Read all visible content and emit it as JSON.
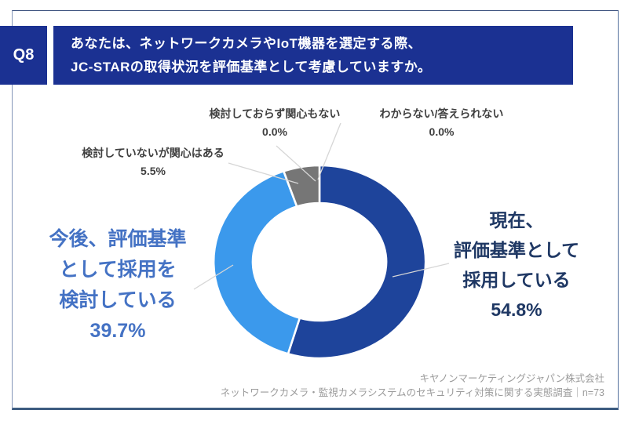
{
  "question": {
    "number": "Q8",
    "line1": "あなたは、ネットワークカメラやIoT機器を選定する際、",
    "line2": "JC-STARの取得状況を評価基準として考慮していますか。"
  },
  "chart_data": {
    "type": "pie",
    "subtype": "donut",
    "title": "",
    "unit": "%",
    "sample_size_label": "n=73",
    "categories": [
      "現在、評価基準として採用している",
      "今後、評価基準として採用を検討している",
      "検討していないが関心はある",
      "検討しておらず関心もない",
      "わからない/答えられない"
    ],
    "values": [
      54.8,
      39.7,
      5.5,
      0.0,
      0.0
    ],
    "colors": [
      "#1e449b",
      "#3b99ec",
      "#767676",
      "#9c9c9c",
      "#b5b5b5"
    ],
    "start_angle_deg": 0,
    "direction": "clockwise",
    "donut_hole_ratio": 0.62,
    "legend": "none",
    "data_labels": "outside"
  },
  "labels": {
    "current": {
      "lines": [
        "現在、",
        "評価基準として",
        "採用している"
      ],
      "value": "54.8%"
    },
    "future": {
      "lines": [
        "今後、評価基準",
        "として採用を",
        "検討している"
      ],
      "value": "39.7%"
    },
    "interested": {
      "text": "検討していないが関心はある",
      "value": "5.5%"
    },
    "not_interested": {
      "text": "検討しておらず関心もない",
      "value": "0.0%"
    },
    "unknown": {
      "text": "わからない/答えられない",
      "value": "0.0%"
    }
  },
  "footer": {
    "company": "キヤノンマーケティングジャパン株式会社",
    "survey": "ネットワークカメラ・監視カメラシステムのセキュリティ対策に関する実態調査｜n=73"
  },
  "theme": {
    "banner_bg": "#1b3192",
    "current_text": "#1f3864",
    "future_text": "#4472c4",
    "callout_text": "#3f3f3f",
    "footer_text": "#9b9b9b",
    "leader_line": "#d6d6d6"
  }
}
